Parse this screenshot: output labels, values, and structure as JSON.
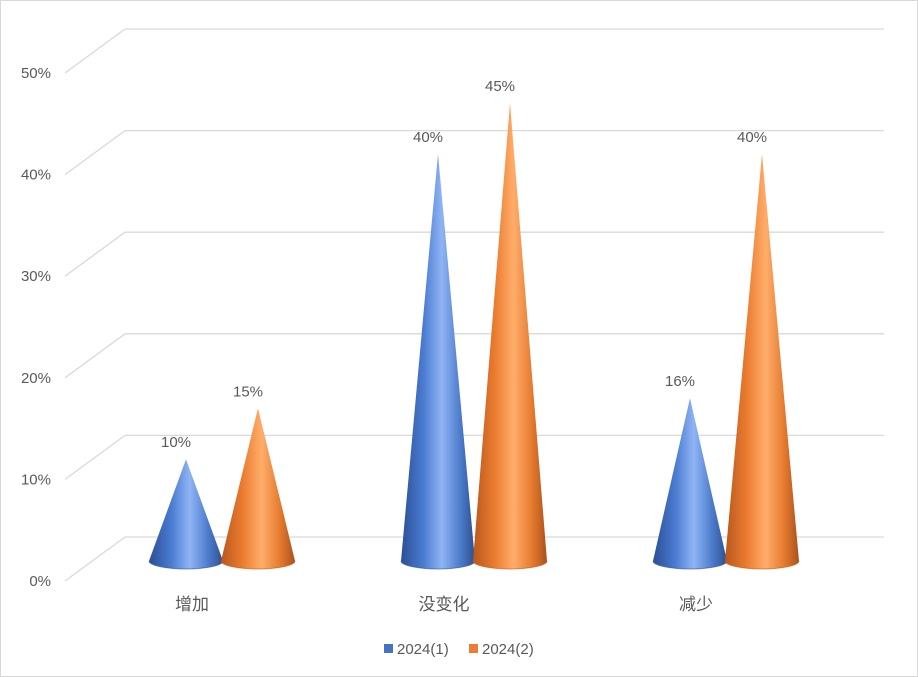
{
  "chart_data": {
    "type": "bar",
    "shape": "cone-3d",
    "categories": [
      "增加",
      "没变化",
      "减少"
    ],
    "series": [
      {
        "name": "2024(1)",
        "values": [
          10,
          40,
          16
        ],
        "labels": [
          "10%",
          "40%",
          "16%"
        ],
        "color": "#4472C4"
      },
      {
        "name": "2024(2)",
        "values": [
          15,
          45,
          40
        ],
        "labels": [
          "15%",
          "45%",
          "40%"
        ],
        "color": "#ED7D31"
      }
    ],
    "yticks": [
      "0%",
      "10%",
      "20%",
      "30%",
      "40%",
      "50%"
    ],
    "ylim": [
      0,
      50
    ],
    "grid": true,
    "legend": "bottom"
  }
}
